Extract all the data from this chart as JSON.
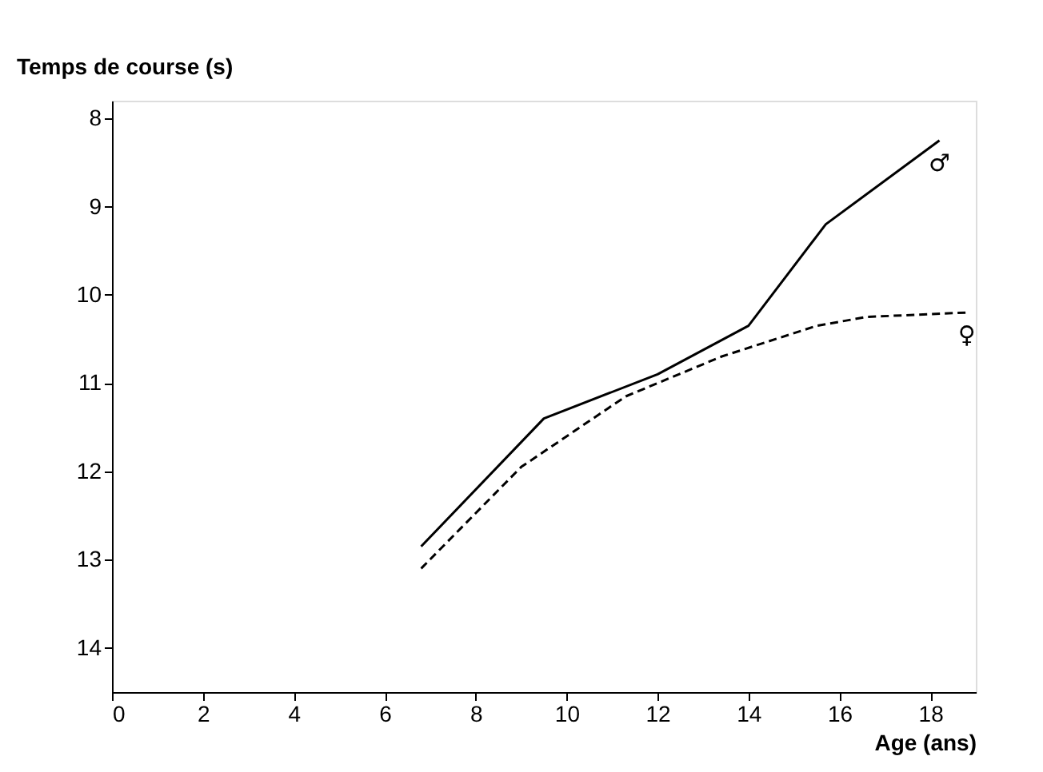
{
  "chart_data": {
    "type": "line",
    "xlabel": "Age (ans)",
    "ylabel": "Temps de course (s)",
    "xlim": [
      0,
      19
    ],
    "xticks": [
      0,
      2,
      4,
      6,
      8,
      10,
      12,
      14,
      16,
      18
    ],
    "ylim": [
      14.5,
      7.8
    ],
    "yticks": [
      8,
      9,
      10,
      11,
      12,
      13,
      14
    ],
    "grid": false,
    "marker": "none",
    "series": [
      {
        "name": "♂",
        "color": "#000000",
        "line_style": "solid",
        "x": [
          6.8,
          9.5,
          12,
          14,
          15.7,
          18.2
        ],
        "values": [
          12.85,
          11.4,
          10.9,
          10.35,
          9.2,
          8.25
        ]
      },
      {
        "name": "♀",
        "color": "#000000",
        "line_style": "dashed",
        "x": [
          6.8,
          9.0,
          11.3,
          13.4,
          15.5,
          16.6,
          18.8
        ],
        "values": [
          13.1,
          11.95,
          11.15,
          10.7,
          10.35,
          10.25,
          10.2
        ]
      }
    ]
  }
}
